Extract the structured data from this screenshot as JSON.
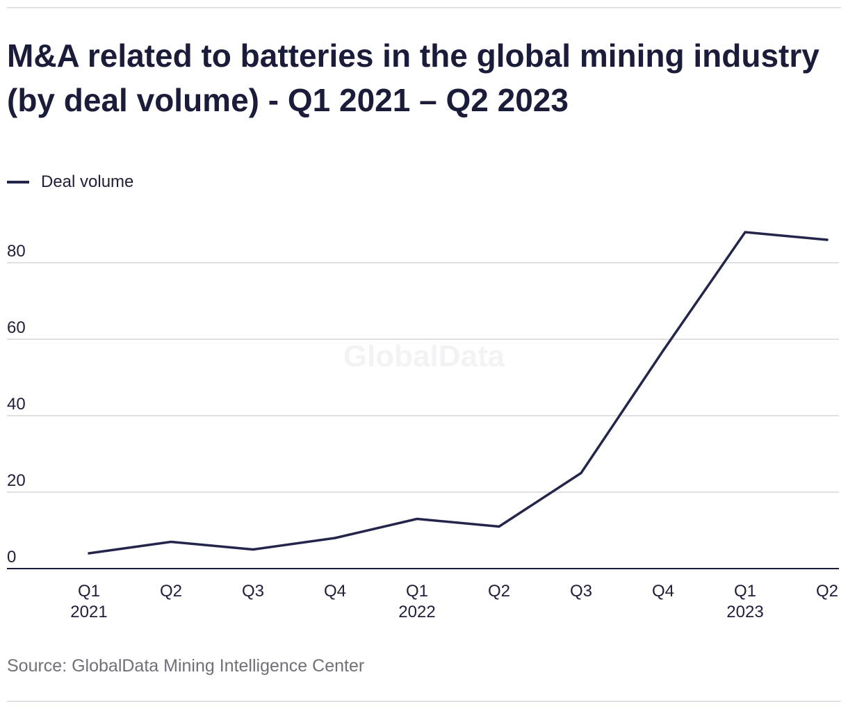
{
  "title": "M&A related to batteries in the global mining industry (by deal volume) - Q1 2021 – Q2 2023",
  "legend": {
    "label": "Deal volume"
  },
  "watermark": "GlobalData",
  "source": "Source: GlobalData Mining Intelligence Center",
  "colors": {
    "line": "#23254a",
    "grid": "#d6d6da",
    "axis": "#1b1c3a",
    "text": "#1f1f3a",
    "muted": "#707079"
  },
  "chart_data": {
    "type": "line",
    "title": "M&A related to batteries in the global mining industry (by deal volume) - Q1 2021 – Q2 2023",
    "xlabel": "",
    "ylabel": "",
    "ylim": [
      0,
      80
    ],
    "yticks": [
      0,
      20,
      40,
      60,
      80
    ],
    "grid": true,
    "legend_position": "top-left",
    "categories": [
      "Q1 2021",
      "Q2 2021",
      "Q3 2021",
      "Q4 2021",
      "Q1 2022",
      "Q2 2022",
      "Q3 2022",
      "Q4 2022",
      "Q1 2023",
      "Q2 2023"
    ],
    "tick_labels": [
      {
        "quarter": "Q1",
        "year": "2021"
      },
      {
        "quarter": "Q2",
        "year": ""
      },
      {
        "quarter": "Q3",
        "year": ""
      },
      {
        "quarter": "Q4",
        "year": ""
      },
      {
        "quarter": "Q1",
        "year": "2022"
      },
      {
        "quarter": "Q2",
        "year": ""
      },
      {
        "quarter": "Q3",
        "year": ""
      },
      {
        "quarter": "Q4",
        "year": ""
      },
      {
        "quarter": "Q1",
        "year": "2023"
      },
      {
        "quarter": "Q2",
        "year": ""
      }
    ],
    "series": [
      {
        "name": "Deal volume",
        "values": [
          4,
          7,
          5,
          8,
          13,
          11,
          25,
          57,
          88,
          86
        ]
      }
    ]
  }
}
